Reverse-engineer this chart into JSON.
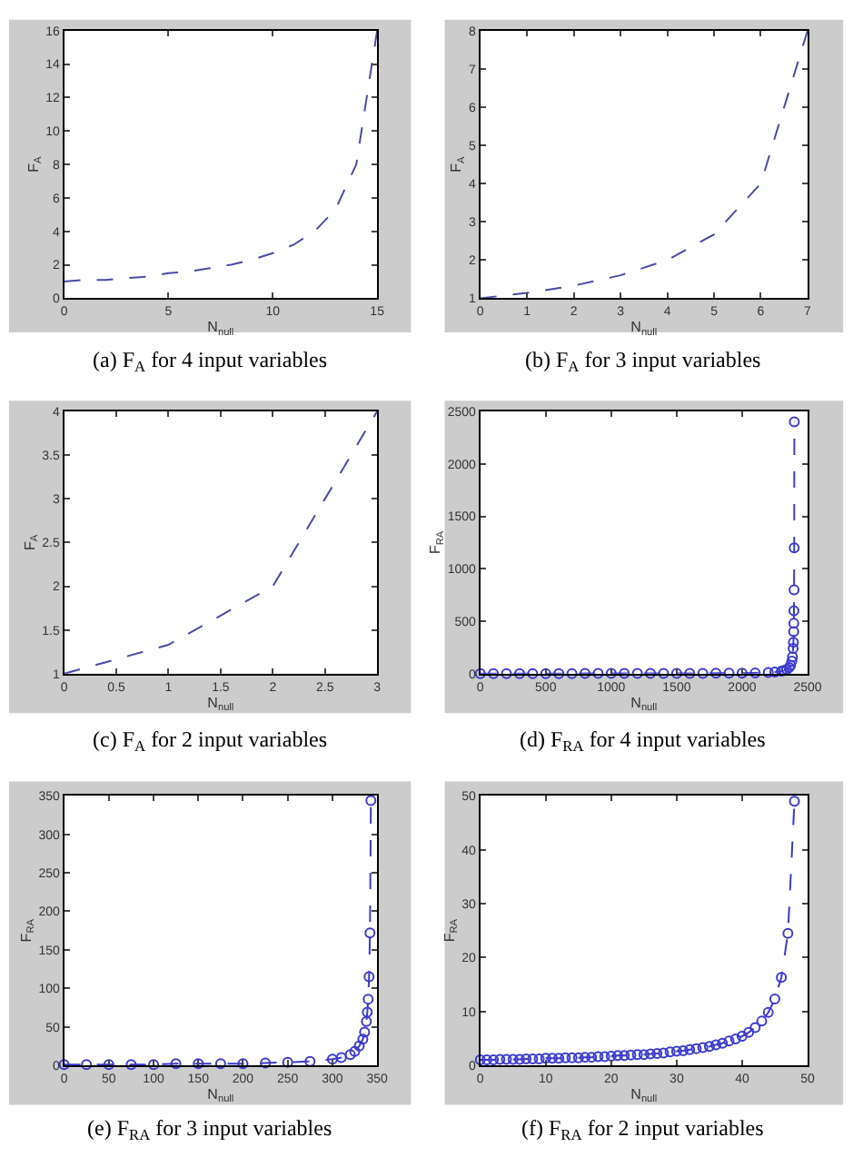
{
  "chart_data": [
    {
      "type": "line",
      "xlabel": "N$_{null}$",
      "ylabel": "F$_{A}$",
      "annotations": [
        "(a) F$_{A}$ for 4 input variables"
      ],
      "x": [
        0,
        1,
        2,
        3,
        4,
        5,
        6,
        7,
        8,
        9,
        10,
        11,
        12,
        13,
        14,
        15
      ],
      "series": [
        {
          "color": "#4a4aa8",
          "values": [
            1,
            1.1,
            1.1,
            1.2,
            1.3,
            1.5,
            1.6,
            1.8,
            2,
            2.3,
            2.7,
            3.2,
            4,
            5.3,
            8,
            16
          ]
        }
      ],
      "xlim": [
        0,
        15
      ],
      "xticks": [
        0,
        5,
        10,
        15
      ],
      "ylim": [
        0,
        16
      ],
      "yticks": [
        0,
        2,
        4,
        6,
        8,
        10,
        12,
        14,
        16
      ],
      "line_style": "dashed"
    },
    {
      "type": "line",
      "xlabel": "N$_{null}$",
      "ylabel": "F$_{A}$",
      "annotations": [
        "(b) F$_{A}$ for 3 input variables"
      ],
      "x": [
        0,
        1,
        2,
        3,
        4,
        5,
        6,
        7
      ],
      "series": [
        {
          "color": "#4a4aa8",
          "values": [
            1,
            1.14,
            1.33,
            1.6,
            2,
            2.67,
            4,
            8
          ]
        }
      ],
      "xlim": [
        0,
        7
      ],
      "xticks": [
        0,
        1,
        2,
        3,
        4,
        5,
        6,
        7
      ],
      "ylim": [
        1,
        8
      ],
      "yticks": [
        1,
        2,
        3,
        4,
        5,
        6,
        7,
        8
      ],
      "line_style": "dashed"
    },
    {
      "type": "line",
      "xlabel": "N$_{null}$",
      "ylabel": "F$_{A}$",
      "annotations": [
        "(c) F$_{A}$ for 2 input variables"
      ],
      "x": [
        0,
        1,
        2,
        3
      ],
      "series": [
        {
          "color": "#4a4aa8",
          "values": [
            1,
            1.33,
            2,
            4
          ]
        }
      ],
      "xlim": [
        0,
        3
      ],
      "xticks": [
        0,
        0.5,
        1,
        1.5,
        2,
        2.5,
        3
      ],
      "ylim": [
        1,
        4
      ],
      "yticks": [
        1,
        1.5,
        2,
        2.5,
        3,
        3.5,
        4
      ],
      "line_style": "dashed"
    },
    {
      "type": "line",
      "xlabel": "N$_{null}$",
      "ylabel": "F$_{RA}$",
      "annotations": [
        "(d) F$_{RA}$ for 4 input variables"
      ],
      "x": [
        0,
        100,
        200,
        300,
        400,
        500,
        600,
        700,
        800,
        900,
        1000,
        1100,
        1200,
        1300,
        1400,
        1500,
        1600,
        1700,
        1800,
        1900,
        2000,
        2100,
        2200,
        2250,
        2300,
        2320,
        2340,
        2360,
        2370,
        2380,
        2385,
        2390,
        2392,
        2394,
        2395,
        2396,
        2397,
        2398,
        2399
      ],
      "series": [
        {
          "color": "#3a3ad0",
          "values": [
            1,
            1,
            1,
            1,
            1,
            1,
            1,
            1,
            2,
            2,
            2,
            2,
            2,
            2,
            2,
            3,
            3,
            3,
            4,
            5,
            6,
            8,
            12,
            16,
            24,
            30,
            40,
            60,
            80,
            120,
            160,
            240,
            300,
            400,
            480,
            600,
            800,
            1200,
            2400
          ]
        }
      ],
      "xlim": [
        0,
        2500
      ],
      "xticks": [
        0,
        500,
        1000,
        1500,
        2000,
        2500
      ],
      "ylim": [
        0,
        2500
      ],
      "yticks": [
        0,
        500,
        1000,
        1500,
        2000,
        2500
      ],
      "line_style": "dashed",
      "marker": "circle"
    },
    {
      "type": "line",
      "xlabel": "N$_{null}$",
      "ylabel": "F$_{RA}$",
      "annotations": [
        "(e) F$_{RA}$ for 3 input variables"
      ],
      "x": [
        0,
        25,
        50,
        75,
        100,
        125,
        150,
        175,
        200,
        225,
        250,
        275,
        300,
        310,
        320,
        325,
        330,
        334,
        336,
        338,
        339,
        340,
        341,
        342,
        343
      ],
      "series": [
        {
          "color": "#3a3ad0",
          "values": [
            1,
            1,
            1,
            1,
            1,
            2,
            2,
            2,
            2,
            3,
            4,
            5,
            8,
            10,
            14,
            18,
            25,
            34,
            43,
            57,
            69,
            86,
            115,
            172,
            344
          ]
        }
      ],
      "xlim": [
        0,
        350
      ],
      "xticks": [
        0,
        50,
        100,
        150,
        200,
        250,
        300,
        350
      ],
      "ylim": [
        0,
        350
      ],
      "yticks": [
        0,
        50,
        100,
        150,
        200,
        250,
        300,
        350
      ],
      "line_style": "dashed",
      "marker": "circle"
    },
    {
      "type": "line",
      "xlabel": "N$_{null}$",
      "ylabel": "F$_{RA}$",
      "annotations": [
        "(f) F$_{RA}$ for 2 input variables"
      ],
      "x": [
        0,
        1,
        2,
        3,
        4,
        5,
        6,
        7,
        8,
        9,
        10,
        11,
        12,
        13,
        14,
        15,
        16,
        17,
        18,
        19,
        20,
        21,
        22,
        23,
        24,
        25,
        26,
        27,
        28,
        29,
        30,
        31,
        32,
        33,
        34,
        35,
        36,
        37,
        38,
        39,
        40,
        41,
        42,
        43,
        44,
        45,
        46,
        47,
        48
      ],
      "series": [
        {
          "color": "#3a3ad0",
          "values": [
            1,
            1,
            1,
            1.1,
            1.1,
            1.1,
            1.1,
            1.2,
            1.2,
            1.2,
            1.3,
            1.3,
            1.3,
            1.4,
            1.4,
            1.4,
            1.5,
            1.5,
            1.6,
            1.6,
            1.7,
            1.8,
            1.8,
            1.9,
            2,
            2,
            2.1,
            2.2,
            2.3,
            2.5,
            2.6,
            2.7,
            2.9,
            3.1,
            3.3,
            3.5,
            3.8,
            4.1,
            4.5,
            4.9,
            5.4,
            6.1,
            7,
            8.2,
            9.8,
            12.3,
            16.3,
            24.5,
            49
          ]
        }
      ],
      "xlim": [
        0,
        50
      ],
      "xticks": [
        0,
        10,
        20,
        30,
        40,
        50
      ],
      "ylim": [
        0,
        50
      ],
      "yticks": [
        0,
        10,
        20,
        30,
        40,
        50
      ],
      "line_style": "dashed",
      "marker": "circle"
    }
  ]
}
